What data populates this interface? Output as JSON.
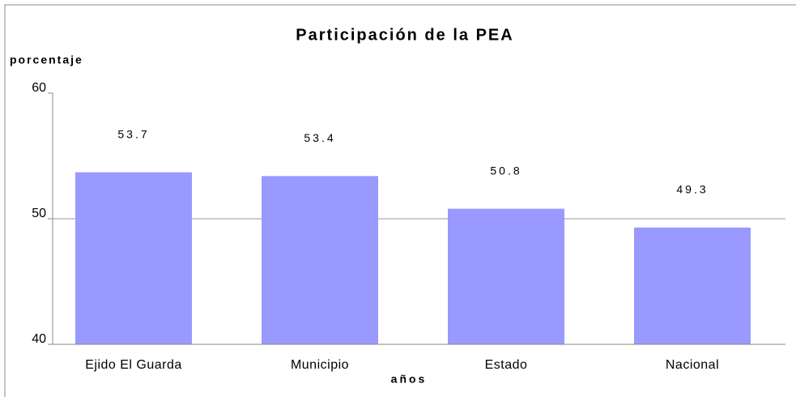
{
  "chart_data": {
    "type": "bar",
    "title": "Participación de la PEA",
    "y_label": "porcentaje",
    "x_label": "años",
    "categories": [
      "Ejido El Guarda",
      "Municipio",
      "Estado",
      "Nacional"
    ],
    "values": [
      53.7,
      53.4,
      50.8,
      49.3
    ],
    "color": "#9999ff",
    "ylim": [
      40,
      60
    ],
    "yticks": [
      40,
      50,
      60
    ],
    "grid": true
  }
}
